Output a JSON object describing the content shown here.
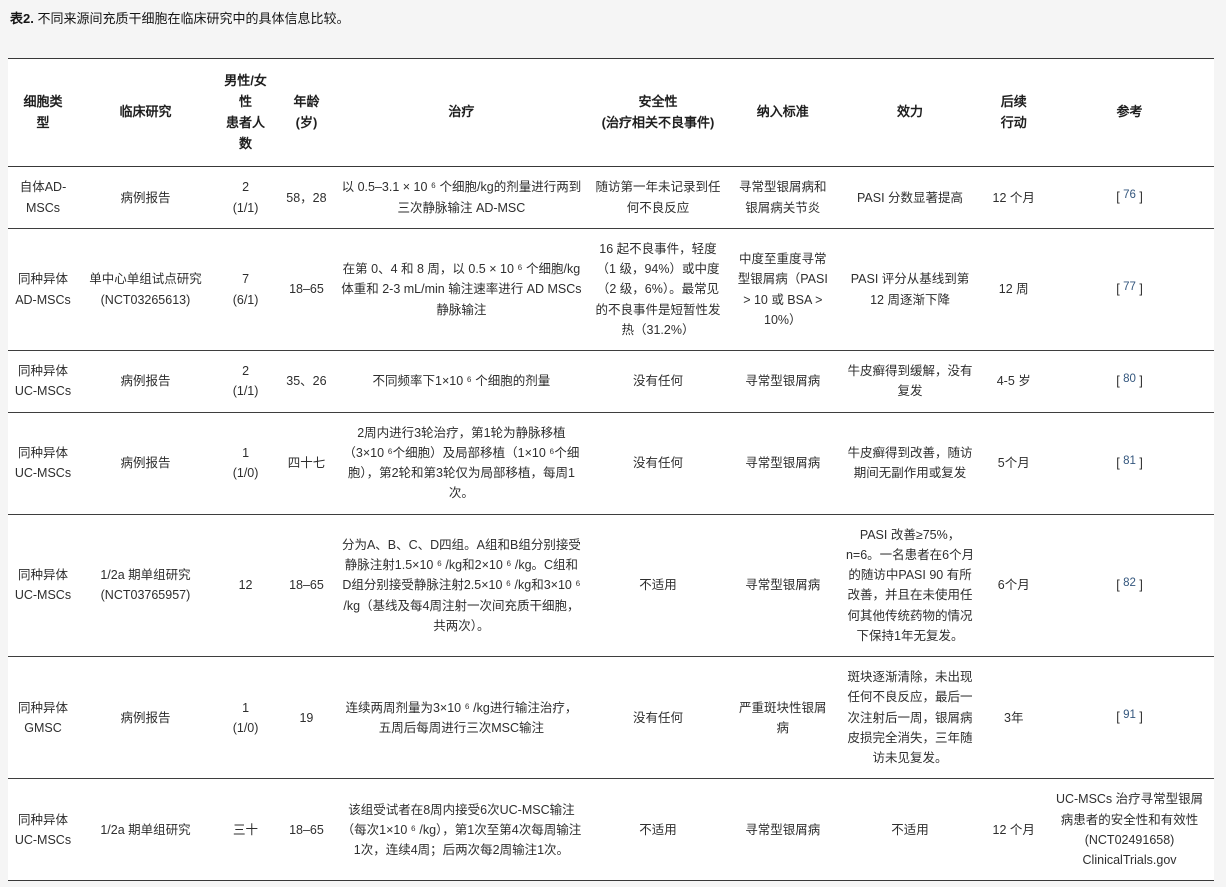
{
  "caption": {
    "label": "表2.",
    "text": " 不同来源间充质干细胞在临床研究中的具体信息比较。"
  },
  "table": {
    "headers": [
      "细胞类\n型",
      "临床研究",
      "男性/女\n性\n患者人\n数",
      "年龄\n(岁)",
      "治疗",
      "安全性\n(治疗相关不良事件)",
      "纳入标准",
      "效力",
      "后续\n行动",
      "参考"
    ],
    "citation_brackets": {
      "open": "[ ",
      "close": " ]"
    },
    "rows": [
      {
        "cells": [
          "自体AD-MSCs",
          "病例报告",
          "2\n(1/1)",
          "58，28",
          "以 0.5–3.1 × 10 ⁶ 个细胞/kg的剂量进行两到三次静脉输注 AD-MSC",
          "随访第一年未记录到任何不良反应",
          "寻常型银屑病和银屑病关节炎",
          "PASI 分数显著提高",
          "12 个月"
        ],
        "ref": {
          "number": "76"
        }
      },
      {
        "cells": [
          "同种异体AD-MSCs",
          "单中心单组试点研究\n(NCT03265613)",
          "7\n(6/1)",
          "18–65",
          "在第 0、4 和 8 周，以 0.5 × 10 ⁶ 个细胞/kg 体重和 2-3 mL/min 输注速率进行 AD MSCs 静脉输注",
          "16 起不良事件，轻度（1 级，94%）或中度（2 级，6%）。最常见的不良事件是短暂性发热（31.2%）",
          "中度至重度寻常型银屑病（PASI > 10 或 BSA > 10%）",
          "PASI 评分从基线到第 12 周逐渐下降",
          "12 周"
        ],
        "ref": {
          "number": "77"
        }
      },
      {
        "cells": [
          "同种异体UC-MSCs",
          "病例报告",
          "2\n(1/1)",
          "35、26",
          "不同频率下1×10 ⁶ 个细胞的剂量",
          "没有任何",
          "寻常型银屑病",
          "牛皮癣得到缓解，没有复发",
          "4-5 岁"
        ],
        "ref": {
          "number": "80"
        }
      },
      {
        "cells": [
          "同种异体UC-MSCs",
          "病例报告",
          "1\n(1/0)",
          "四十七",
          "2周内进行3轮治疗，第1轮为静脉移植（3×10 ⁶个细胞）及局部移植（1×10 ⁶个细胞），第2轮和第3轮仅为局部移植，每周1次。",
          "没有任何",
          "寻常型银屑病",
          "牛皮癣得到改善，随访期间无副作用或复发",
          "5个月"
        ],
        "ref": {
          "number": "81"
        }
      },
      {
        "cells": [
          "同种异体UC-MSCs",
          "1/2a 期单组研究\n(NCT03765957)",
          "12",
          "18–65",
          "分为A、B、C、D四组。A组和B组分别接受静脉注射1.5×10 ⁶ /kg和2×10 ⁶ /kg。C组和D组分别接受静脉注射2.5×10 ⁶ /kg和3×10 ⁶ /kg（基线及每4周注射一次间充质干细胞，共两次）。",
          "不适用",
          "寻常型银屑病",
          "PASI 改善≥75%，n=6。一名患者在6个月的随访中PASI 90 有所改善，并且在未使用任何其他传统药物的情况下保持1年无复发。",
          "6个月"
        ],
        "ref": {
          "number": "82"
        }
      },
      {
        "cells": [
          "同种异体 GMSC",
          "病例报告",
          "1\n(1/0)",
          "19",
          "连续两周剂量为3×10 ⁶ /kg进行输注治疗，五周后每周进行三次MSC输注",
          "没有任何",
          "严重斑块性银屑病",
          "斑块逐渐清除，未出现任何不良反应，最后一次注射后一周，银屑病皮损完全消失，三年随访未见复发。",
          "3年"
        ],
        "ref": {
          "number": "91"
        }
      },
      {
        "cells": [
          "同种异体UC-MSCs",
          "1/2a 期单组研究",
          "三十",
          "18–65",
          "该组受试者在8周内接受6次UC-MSC输注（每次1×10 ⁶ /kg），第1次至第4次每周输注1次，连续4周；后两次每2周输注1次。",
          "不适用",
          "寻常型银屑病",
          "不适用",
          "12 个月"
        ],
        "ref": {
          "text": "UC-MSCs 治疗寻常型银屑病患者的安全性和有效性 (NCT02491658) ClinicalTrials.gov"
        }
      }
    ]
  }
}
